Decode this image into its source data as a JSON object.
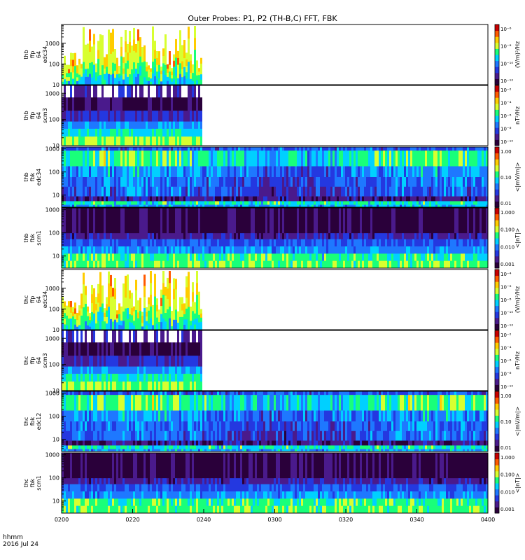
{
  "title": "Outer Probes: P1, P2 (TH-B,C) FFT, FBK",
  "footer": {
    "line1": "hhmm",
    "line2": "2016 Jul 24"
  },
  "colors": {
    "colormap": [
      "#2a003a",
      "#4a1a8c",
      "#2438e0",
      "#1e78ff",
      "#00d0ff",
      "#19ff7a",
      "#d8ff30",
      "#ffcc00",
      "#ff5a00",
      "#c80000"
    ],
    "background": "#ffffff",
    "nodata": "#ffffff"
  },
  "chart_data": [
    {
      "type": "heatmap",
      "panel": "thb-ffp-64-edc34",
      "ylabel": [
        "thb",
        "ffp",
        "64",
        "edc34"
      ],
      "yscale": "log",
      "ylim": [
        10,
        8000
      ],
      "yticks": [
        "1000",
        "100",
        "10"
      ],
      "colorbar_label": "(V/m)²/Hz",
      "colorbar_ticks": [
        "10⁻⁶",
        "10⁻⁸",
        "10⁻¹⁰",
        "10⁻¹²"
      ],
      "data_until": "02:40",
      "pattern": "ffp-e"
    },
    {
      "type": "heatmap",
      "panel": "thb-ffp-64-scm3",
      "ylabel": [
        "thb",
        "ffp",
        "64",
        "scm3"
      ],
      "yscale": "log",
      "ylim": [
        10,
        2000
      ],
      "yticks": [
        "1000",
        "100",
        "10"
      ],
      "colorbar_label": "nT²/Hz",
      "colorbar_ticks": [
        "10⁻²",
        "10⁻⁴",
        "10⁻⁶",
        "10⁻⁸",
        "10⁻¹⁰"
      ],
      "data_until": "02:40",
      "pattern": "ffp-b"
    },
    {
      "type": "heatmap",
      "panel": "thb-fbk-edc34",
      "ylabel": [
        "thb",
        "fbk",
        "edc34"
      ],
      "yscale": "log",
      "ylim": [
        3,
        1200
      ],
      "yticks": [
        "1000",
        "100",
        "10"
      ],
      "colorbar_label": "<|mV/m|>",
      "colorbar_ticks": [
        "1.00",
        "0.10",
        "0.01"
      ],
      "data_until": "04:00",
      "pattern": "fbk-e"
    },
    {
      "type": "heatmap",
      "panel": "thb-fbk-scm1",
      "ylabel": [
        "thb",
        "fbk",
        "scm1"
      ],
      "yscale": "log",
      "ylim": [
        3,
        1200
      ],
      "yticks": [
        "1000",
        "100",
        "10"
      ],
      "colorbar_label": "<|nT|>",
      "colorbar_ticks": [
        "1.000",
        "0.100",
        "0.010",
        "0.001"
      ],
      "data_until": "04:00",
      "pattern": "fbk-b"
    },
    {
      "type": "heatmap",
      "panel": "thc-ffp-64-edc34",
      "ylabel": [
        "thc",
        "ffp",
        "64",
        "edc34"
      ],
      "yscale": "log",
      "ylim": [
        10,
        8000
      ],
      "yticks": [
        "1000",
        "100",
        "10"
      ],
      "colorbar_label": "(V/m)²/Hz",
      "colorbar_ticks": [
        "10⁻⁴",
        "10⁻⁶",
        "10⁻⁸",
        "10⁻¹⁰",
        "10⁻¹²"
      ],
      "data_until": "02:40",
      "pattern": "ffp-e"
    },
    {
      "type": "heatmap",
      "panel": "thc-ffp-64-scm3",
      "ylabel": [
        "thc",
        "ffp",
        "64",
        "scm3"
      ],
      "yscale": "log",
      "ylim": [
        10,
        2000
      ],
      "yticks": [
        "1000",
        "100",
        "10"
      ],
      "colorbar_label": "nT²/Hz",
      "colorbar_ticks": [
        "10⁻²",
        "10⁻⁴",
        "10⁻⁶",
        "10⁻⁸",
        "10⁻¹⁰"
      ],
      "data_until": "02:40",
      "pattern": "ffp-b"
    },
    {
      "type": "heatmap",
      "panel": "thc-fbk-edc12",
      "ylabel": [
        "thc",
        "fbk",
        "edc12"
      ],
      "yscale": "log",
      "ylim": [
        3,
        1200
      ],
      "yticks": [
        "1000",
        "100",
        "10"
      ],
      "colorbar_label": "<|mV/m|>",
      "colorbar_ticks": [
        "1.00",
        "0.10",
        "0.01"
      ],
      "data_until": "04:00",
      "pattern": "fbk-e"
    },
    {
      "type": "heatmap",
      "panel": "thc-fbk-scm1",
      "ylabel": [
        "thc",
        "fbk",
        "scm1"
      ],
      "yscale": "log",
      "ylim": [
        3,
        1200
      ],
      "yticks": [
        "1000",
        "100",
        "10"
      ],
      "colorbar_label": "<|nT|>",
      "colorbar_ticks": [
        "1.000",
        "0.100",
        "0.010",
        "0.001"
      ],
      "data_until": "04:00",
      "pattern": "fbk-b"
    }
  ],
  "xaxis": {
    "range": [
      "02:00",
      "04:00"
    ],
    "tick_labels": [
      "0200",
      "0220",
      "0240",
      "0300",
      "0320",
      "0340",
      "0400"
    ]
  }
}
